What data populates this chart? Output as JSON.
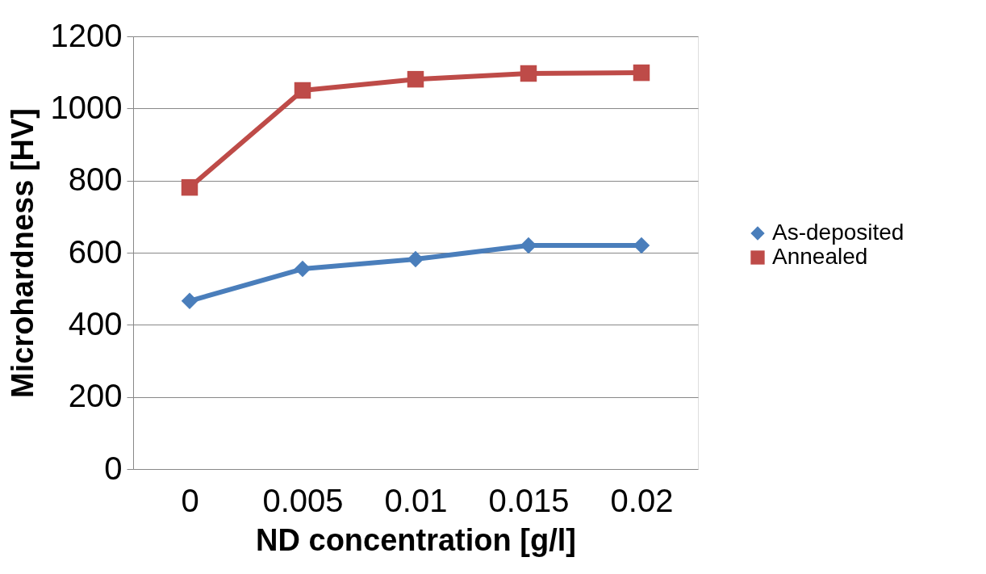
{
  "chart_data": {
    "type": "line",
    "xlabel": "ND concentration [g/l]",
    "ylabel": "Microhardness [HV]",
    "categories": [
      "0",
      "0.005",
      "0.01",
      "0.015",
      "0.02"
    ],
    "series": [
      {
        "name": "As-deposited",
        "color": "#4a7ebb",
        "marker": "diamond",
        "values": [
          466,
          555,
          582,
          620,
          620
        ]
      },
      {
        "name": "Annealed",
        "color": "#be4b48",
        "marker": "square",
        "values": [
          781,
          1050,
          1081,
          1097,
          1099
        ]
      }
    ],
    "ylim": [
      0,
      1200
    ],
    "yticks": [
      0,
      200,
      400,
      600,
      800,
      1000,
      1200
    ],
    "grid": "y",
    "legend": "right"
  }
}
